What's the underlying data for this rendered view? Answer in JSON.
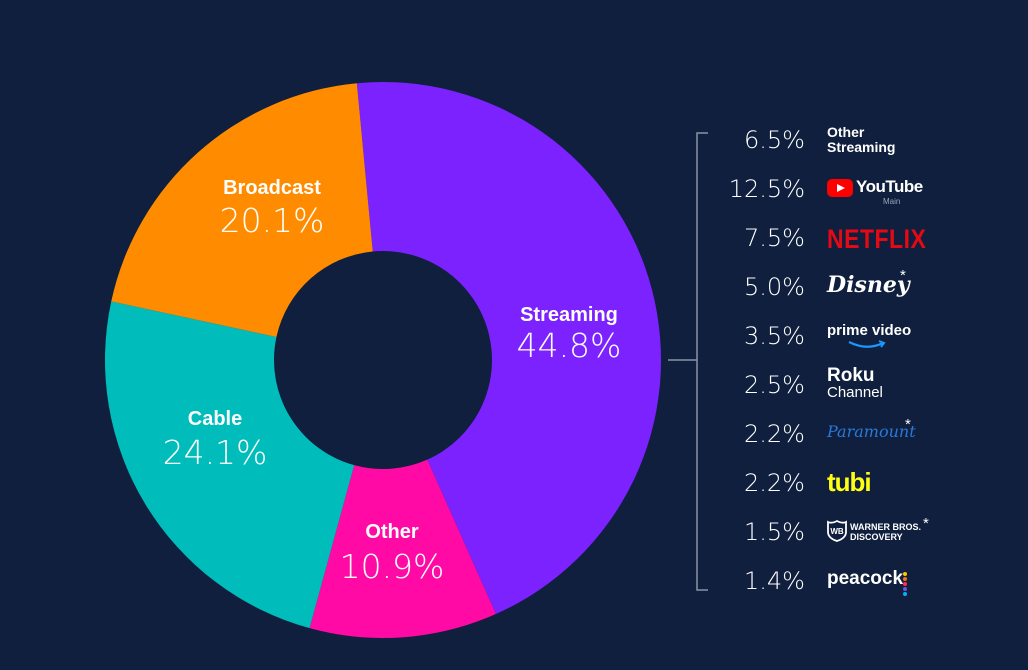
{
  "colors": {
    "background": "#0f1f3d",
    "streaming": "#7b22ff",
    "other": "#ff0aa5",
    "cable": "#00bdbb",
    "broadcast": "#ff8c00",
    "bracket": "#8a93a6"
  },
  "chart_data": {
    "type": "pie",
    "variant": "donut",
    "slices": [
      {
        "name": "Streaming",
        "value": 44.8,
        "label": "44.8%",
        "color": "#7b22ff"
      },
      {
        "name": "Other",
        "value": 10.9,
        "label": "10.9%",
        "color": "#ff0aa5"
      },
      {
        "name": "Cable",
        "value": 24.1,
        "label": "24.1%",
        "color": "#00bdbb"
      },
      {
        "name": "Broadcast",
        "value": 20.1,
        "label": "20.1%",
        "color": "#ff8c00"
      }
    ],
    "breakdown": {
      "parent": "Streaming",
      "items": [
        {
          "name": "Other Streaming",
          "value": 6.5,
          "label": "6.5%",
          "logo": "Other\nStreaming"
        },
        {
          "name": "YouTube Main",
          "value": 12.5,
          "label": "12.5%",
          "logo": "YouTube",
          "logo_sub": "Main"
        },
        {
          "name": "Netflix",
          "value": 7.5,
          "label": "7.5%",
          "logo": "NETFLIX"
        },
        {
          "name": "Disney",
          "value": 5.0,
          "label": "5.0%",
          "logo": "Disney",
          "asterisk": "*"
        },
        {
          "name": "Prime Video",
          "value": 3.5,
          "label": "3.5%",
          "logo": "prime video"
        },
        {
          "name": "Roku Channel",
          "value": 2.5,
          "label": "2.5%",
          "logo": "Roku",
          "logo_sub": "Channel"
        },
        {
          "name": "Paramount",
          "value": 2.2,
          "label": "2.2%",
          "logo": "Paramount",
          "asterisk": "*"
        },
        {
          "name": "Tubi",
          "value": 2.2,
          "label": "2.2%",
          "logo": "tubi"
        },
        {
          "name": "Warner Bros. Discovery",
          "value": 1.5,
          "label": "1.5%",
          "logo": "WARNER BROS.\nDISCOVERY",
          "asterisk": "*"
        },
        {
          "name": "Peacock",
          "value": 1.4,
          "label": "1.4%",
          "logo": "peacock"
        }
      ]
    }
  }
}
